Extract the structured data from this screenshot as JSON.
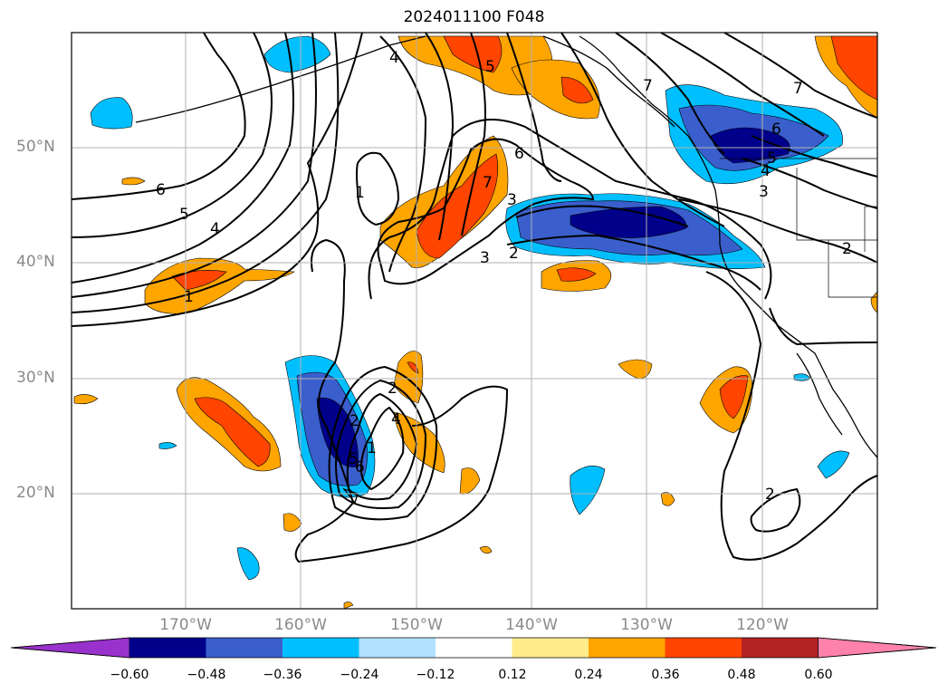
{
  "title": "2024011100 F048",
  "map": {
    "lat_ticks": [
      "50°N",
      "40°N",
      "30°N",
      "20°N"
    ],
    "lon_ticks": [
      "170°W",
      "160°W",
      "150°W",
      "140°W",
      "130°W",
      "120°W"
    ],
    "contour_labels": [
      "1",
      "2",
      "3",
      "4",
      "5",
      "6",
      "7",
      "6",
      "5",
      "4",
      "2",
      "1",
      "2",
      "1",
      "2",
      "3",
      "4",
      "5",
      "6",
      "7",
      "6",
      "5",
      "4",
      "3",
      "2",
      "7"
    ]
  },
  "colorbar": {
    "ticks": [
      "−0.60",
      "−0.48",
      "−0.36",
      "−0.24",
      "−0.12",
      "0.12",
      "0.24",
      "0.36",
      "0.48",
      "0.60"
    ],
    "colors": [
      "#9932cc",
      "#00008b",
      "#3a5fcd",
      "#00bfff",
      "#b0e2ff",
      "#ffffff",
      "#ffec8b",
      "#ffa500",
      "#ff4500",
      "#b22222",
      "#ff82ab"
    ]
  }
}
